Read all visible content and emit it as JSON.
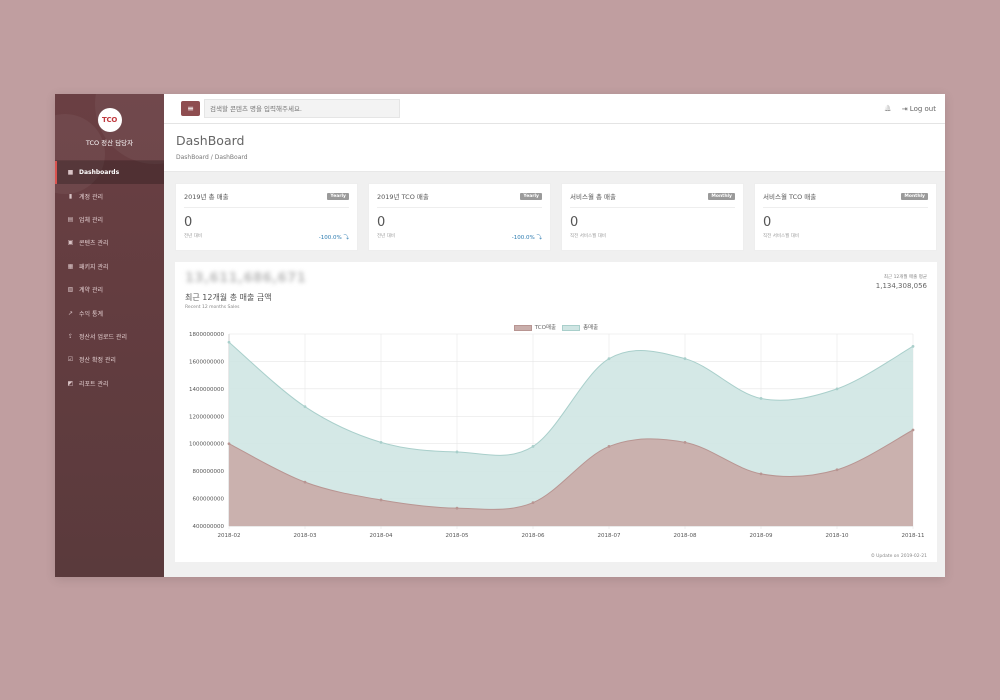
{
  "brand": {
    "logo_text": "TCO",
    "subtitle": "TCO 정산 담당자"
  },
  "nav": [
    {
      "label": "Dashboards",
      "icon": "■",
      "active": true
    },
    {
      "label": "계정 관리",
      "icon": "▮"
    },
    {
      "label": "업체 관리",
      "icon": "▤"
    },
    {
      "label": "콘텐츠 관리",
      "icon": "▣"
    },
    {
      "label": "패키지 관리",
      "icon": "▦"
    },
    {
      "label": "계약 관리",
      "icon": "▧"
    },
    {
      "label": "수익 통계",
      "icon": "↗"
    },
    {
      "label": "정산서 업로드 관리",
      "icon": "⇪"
    },
    {
      "label": "정산 확정 관리",
      "icon": "☑"
    },
    {
      "label": "리포트 관리",
      "icon": "◩"
    }
  ],
  "topbar": {
    "menu_icon": "≡",
    "search_placeholder": "검색할 콘텐츠 명을 입력해주세요.",
    "bell_icon": "🔔",
    "logout_icon": "⇥",
    "logout_label": "Log out"
  },
  "page": {
    "title": "DashBoard",
    "breadcrumb": "DashBoard  /  DashBoard"
  },
  "cards": [
    {
      "title": "2019년 총 매출",
      "badge": "Yearly",
      "value": "0",
      "sub": "전년 대비",
      "pct": "-100.0% ⤵"
    },
    {
      "title": "2019년 TCO 매출",
      "badge": "Yearly",
      "value": "0",
      "sub": "전년 대비",
      "pct": "-100.0% ⤵"
    },
    {
      "title": "서비스월 총 매출",
      "badge": "Monthly",
      "value": "0",
      "sub": "직전 서비스월 대비",
      "pct": ""
    },
    {
      "title": "서비스월 TCO 매출",
      "badge": "Monthly",
      "value": "0",
      "sub": "직전 서비스월 대비",
      "pct": ""
    }
  ],
  "chart_panel": {
    "big_value": "13,611,686,671",
    "title": "최근 12개월 총 매출 금액",
    "subtitle": "Recent 12 months Sales",
    "avg_label": "최근 12개월 매출 평균",
    "avg_value": "1,134,308,056",
    "update_text": "⏲ Update on 2019-02-21"
  },
  "chart_data": {
    "type": "area",
    "x": [
      "2018-02",
      "2018-03",
      "2018-04",
      "2018-05",
      "2018-06",
      "2018-07",
      "2018-08",
      "2018-09",
      "2018-10",
      "2018-11"
    ],
    "ylim": [
      400000000,
      1800000000
    ],
    "yticks": [
      "1800000000",
      "1600000000",
      "1400000000",
      "1200000000",
      "1000000000",
      "800000000",
      "600000000",
      "400000000"
    ],
    "grid": true,
    "legend_position": "top-center",
    "series": [
      {
        "name": "TCO매출",
        "color": "#c9aeab",
        "values": [
          1000000000,
          720000000,
          590000000,
          530000000,
          570000000,
          980000000,
          1010000000,
          780000000,
          810000000,
          1100000000
        ]
      },
      {
        "name": "총매출",
        "color": "#cfe5e3",
        "values": [
          1740000000,
          1270000000,
          1010000000,
          940000000,
          980000000,
          1620000000,
          1620000000,
          1330000000,
          1400000000,
          1710000000
        ]
      }
    ]
  },
  "colors": {
    "background": "#c09ea0",
    "sidebar": "#5e3b3e",
    "accent": "#8e4d50"
  }
}
